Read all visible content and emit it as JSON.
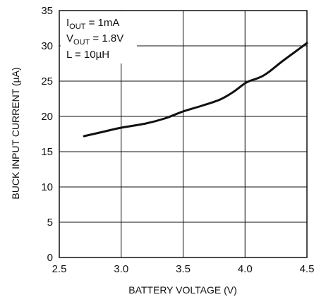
{
  "chart_data": {
    "type": "line",
    "title": "",
    "xlabel": "BATTERY VOLTAGE (V)",
    "ylabel": "BUCK INPUT CURRENT (µA)",
    "xlim": [
      2.5,
      4.5
    ],
    "ylim": [
      0,
      35
    ],
    "xticks": [
      2.5,
      3.0,
      3.5,
      4.0,
      4.5
    ],
    "xtick_labels": [
      "2.5",
      "3.0",
      "3.5",
      "4.0",
      "4.5"
    ],
    "yticks": [
      0,
      5,
      10,
      15,
      20,
      25,
      30,
      35
    ],
    "ytick_labels": [
      "0",
      "5",
      "10",
      "15",
      "20",
      "25",
      "30",
      "35"
    ],
    "grid": true,
    "annotations": {
      "line1": {
        "main": "I",
        "sub": "OUT",
        "rest": " = 1mA"
      },
      "line2": {
        "main": "V",
        "sub": "OUT",
        "rest": " = 1.8V"
      },
      "line3": {
        "text": "L = 10µH"
      }
    },
    "series": [
      {
        "x": [
          2.7,
          2.85,
          3.0,
          3.2,
          3.35,
          3.5,
          3.65,
          3.8,
          3.9,
          4.0,
          4.05,
          4.1,
          4.15,
          4.2,
          4.3,
          4.4,
          4.5
        ],
        "y": [
          17.2,
          17.8,
          18.4,
          19.0,
          19.7,
          20.7,
          21.5,
          22.4,
          23.4,
          24.7,
          25.1,
          25.4,
          25.8,
          26.4,
          27.8,
          29.1,
          30.4
        ]
      }
    ]
  }
}
